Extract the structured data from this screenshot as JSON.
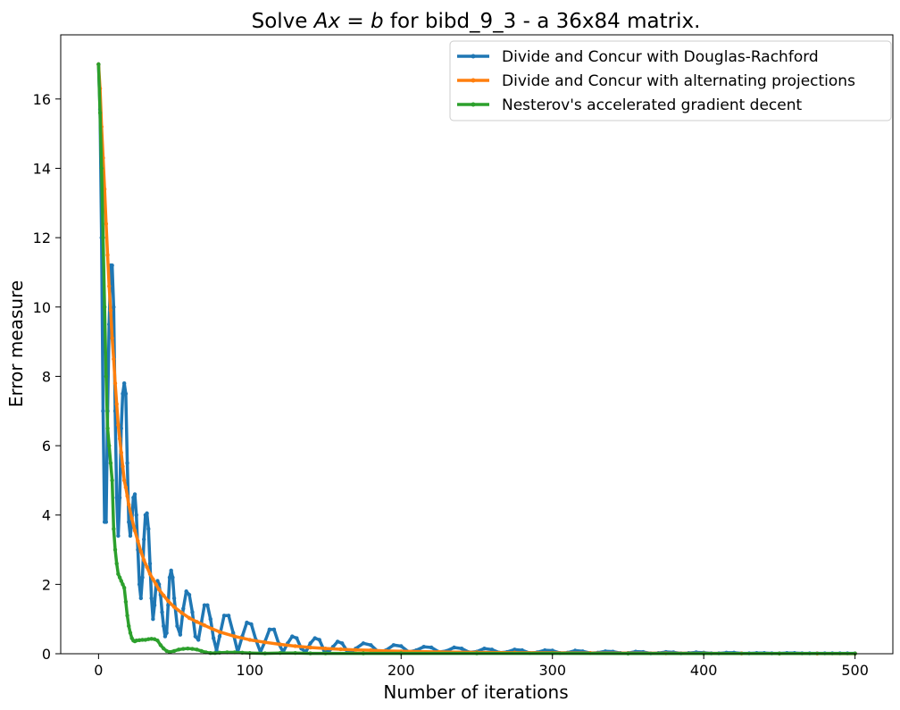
{
  "chart_data": {
    "type": "line",
    "title": "Solve $Ax = b$ for bibd_9_3 - a 36x84 matrix.",
    "xlabel": "Number of iterations",
    "ylabel": "Error measure",
    "xlim": [
      -25,
      525
    ],
    "ylim": [
      0,
      17.85
    ],
    "xticks": [
      0,
      100,
      200,
      300,
      400,
      500
    ],
    "yticks": [
      0,
      2,
      4,
      6,
      8,
      10,
      12,
      14,
      16
    ],
    "grid": false,
    "legend_position": "top-right",
    "series": [
      {
        "name": "Divide and Concur with Douglas-Rachford",
        "color": "#1f77b4",
        "x": [
          0,
          1,
          2,
          3,
          4,
          5,
          6,
          7,
          8,
          9,
          10,
          11,
          12,
          13,
          14,
          15,
          16,
          17,
          18,
          19,
          20,
          21,
          22,
          23,
          24,
          25,
          26,
          27,
          28,
          29,
          30,
          31,
          32,
          33,
          34,
          35,
          36,
          37,
          38,
          39,
          40,
          41,
          42,
          43,
          44,
          45,
          46,
          47,
          48,
          49,
          50,
          52,
          54,
          56,
          58,
          60,
          62,
          64,
          66,
          68,
          70,
          72,
          74,
          76,
          78,
          80,
          83,
          86,
          89,
          92,
          95,
          98,
          101,
          104,
          107,
          110,
          113,
          116,
          119,
          122,
          125,
          128,
          131,
          134,
          137,
          140,
          143,
          146,
          149,
          152,
          155,
          158,
          161,
          164,
          167,
          170,
          175,
          180,
          185,
          190,
          195,
          200,
          205,
          210,
          215,
          220,
          225,
          230,
          235,
          240,
          245,
          250,
          255,
          260,
          265,
          270,
          275,
          280,
          285,
          290,
          295,
          300,
          305,
          310,
          315,
          320,
          325,
          330,
          335,
          340,
          345,
          350,
          355,
          360,
          365,
          370,
          375,
          380,
          385,
          390,
          395,
          400,
          405,
          410,
          415,
          420,
          425,
          430,
          435,
          440,
          445,
          450,
          455,
          460,
          465,
          470,
          475,
          480,
          485,
          490,
          495,
          500
        ],
        "y": [
          17.0,
          15.7,
          12.0,
          7.0,
          3.8,
          3.8,
          7.0,
          9.5,
          11.2,
          11.2,
          10.0,
          7.0,
          4.5,
          3.4,
          4.5,
          6.5,
          7.5,
          7.8,
          7.5,
          5.5,
          3.8,
          3.4,
          3.8,
          4.5,
          4.6,
          4.0,
          3.0,
          2.0,
          1.6,
          2.2,
          3.3,
          4.0,
          4.05,
          3.6,
          2.6,
          1.6,
          1.0,
          1.4,
          2.0,
          2.1,
          2.0,
          1.7,
          1.2,
          0.8,
          0.5,
          0.6,
          1.4,
          2.2,
          2.4,
          2.2,
          1.6,
          0.8,
          0.55,
          1.3,
          1.8,
          1.7,
          1.2,
          0.5,
          0.4,
          0.9,
          1.4,
          1.4,
          1.0,
          0.45,
          0.1,
          0.5,
          1.1,
          1.1,
          0.6,
          0.05,
          0.5,
          0.9,
          0.85,
          0.4,
          0.05,
          0.35,
          0.7,
          0.7,
          0.3,
          0.05,
          0.3,
          0.5,
          0.45,
          0.15,
          0.05,
          0.3,
          0.45,
          0.4,
          0.1,
          0.05,
          0.2,
          0.35,
          0.3,
          0.1,
          0.03,
          0.15,
          0.3,
          0.25,
          0.05,
          0.1,
          0.25,
          0.22,
          0.05,
          0.1,
          0.2,
          0.18,
          0.05,
          0.08,
          0.18,
          0.15,
          0.04,
          0.06,
          0.15,
          0.12,
          0.03,
          0.05,
          0.12,
          0.1,
          0.02,
          0.04,
          0.1,
          0.09,
          0.02,
          0.03,
          0.09,
          0.07,
          0.02,
          0.03,
          0.07,
          0.06,
          0.02,
          0.02,
          0.06,
          0.05,
          0.01,
          0.02,
          0.05,
          0.04,
          0.01,
          0.02,
          0.04,
          0.03,
          0.01,
          0.01,
          0.03,
          0.03,
          0.01,
          0.01,
          0.02,
          0.02,
          0.01,
          0.01,
          0.02,
          0.02,
          0.01,
          0.01,
          0.01,
          0.01,
          0.01,
          0.01,
          0.01,
          0.01
        ]
      },
      {
        "name": "Divide and Concur with alternating projections",
        "color": "#ff7f0e",
        "x": [
          0,
          1,
          2,
          3,
          4,
          5,
          6,
          7,
          8,
          9,
          10,
          11,
          12,
          13,
          14,
          15,
          16,
          17,
          18,
          19,
          20,
          22,
          24,
          26,
          28,
          30,
          32,
          34,
          36,
          38,
          40,
          43,
          46,
          50,
          55,
          60,
          65,
          70,
          75,
          80,
          90,
          100,
          110,
          120,
          130,
          140,
          150,
          160,
          170,
          180,
          190,
          200,
          225,
          250,
          275,
          300,
          325,
          350,
          375,
          400,
          425,
          450,
          475,
          500
        ],
        "y": [
          17.0,
          16.3,
          15.2,
          14.3,
          13.4,
          12.4,
          11.5,
          10.6,
          9.9,
          9.1,
          8.5,
          7.8,
          7.2,
          6.6,
          6.2,
          5.8,
          5.4,
          5.0,
          4.8,
          4.55,
          4.3,
          3.9,
          3.55,
          3.25,
          2.95,
          2.7,
          2.5,
          2.3,
          2.15,
          2.0,
          1.85,
          1.68,
          1.52,
          1.35,
          1.18,
          1.03,
          0.92,
          0.82,
          0.72,
          0.63,
          0.5,
          0.4,
          0.33,
          0.27,
          0.22,
          0.18,
          0.15,
          0.13,
          0.11,
          0.1,
          0.08,
          0.07,
          0.05,
          0.04,
          0.03,
          0.025,
          0.02,
          0.015,
          0.012,
          0.01,
          0.008,
          0.006,
          0.005,
          0.004
        ]
      },
      {
        "name": "Nesterov's accelerated gradient decent",
        "color": "#2ca02c",
        "x": [
          0,
          1,
          2,
          3,
          4,
          5,
          6,
          7,
          8,
          9,
          10,
          11,
          12,
          13,
          14,
          15,
          16,
          17,
          18,
          19,
          20,
          21,
          22,
          23,
          24,
          25,
          27,
          29,
          31,
          33,
          35,
          37,
          39,
          41,
          43,
          45,
          47,
          50,
          53,
          56,
          59,
          62,
          65,
          68,
          71,
          74,
          77,
          80,
          85,
          90,
          95,
          100,
          110,
          120,
          130,
          140,
          150,
          175,
          200,
          250,
          300,
          350,
          400,
          450,
          500
        ],
        "y": [
          17.0,
          15.6,
          14.0,
          12.0,
          10.0,
          8.0,
          6.5,
          6.0,
          5.5,
          5.0,
          3.6,
          3.0,
          2.6,
          2.3,
          2.2,
          2.1,
          2.0,
          1.9,
          1.5,
          1.1,
          0.8,
          0.6,
          0.45,
          0.38,
          0.36,
          0.38,
          0.39,
          0.4,
          0.4,
          0.42,
          0.43,
          0.42,
          0.38,
          0.25,
          0.15,
          0.08,
          0.05,
          0.08,
          0.12,
          0.14,
          0.15,
          0.14,
          0.12,
          0.08,
          0.04,
          0.02,
          0.02,
          0.03,
          0.04,
          0.04,
          0.03,
          0.02,
          0.01,
          0.02,
          0.02,
          0.01,
          0.01,
          0.01,
          0.01,
          0.01,
          0.01,
          0.005,
          0.005,
          0.005,
          0.005
        ]
      }
    ]
  }
}
